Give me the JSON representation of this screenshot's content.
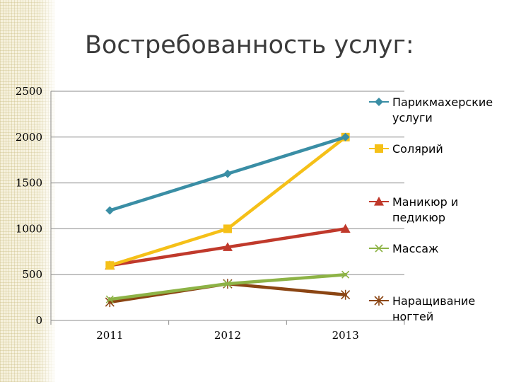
{
  "title": "Востребованность услуг:",
  "chart_data": {
    "type": "line",
    "title": "Востребованность услуг:",
    "x": [
      "2011",
      "2012",
      "2013"
    ],
    "ylim": [
      0,
      2500
    ],
    "yticks": [
      0,
      500,
      1000,
      1500,
      2000,
      2500
    ],
    "grid": true,
    "legend_position": "right",
    "series": [
      {
        "name": "Парикмахерские услуги",
        "values": [
          1200,
          1600,
          2000
        ],
        "color": "#3a8ea5",
        "marker": "diamond"
      },
      {
        "name": "Солярий",
        "values": [
          600,
          1000,
          2000
        ],
        "color": "#f5c018",
        "marker": "square"
      },
      {
        "name": "Маникюр и педикюр",
        "values": [
          600,
          800,
          1000
        ],
        "color": "#c0392b",
        "marker": "triangle"
      },
      {
        "name": "Массаж",
        "values": [
          230,
          400,
          500
        ],
        "color": "#8db346",
        "marker": "x"
      },
      {
        "name": "Наращивание ногтей",
        "values": [
          200,
          400,
          280
        ],
        "color": "#8b4513",
        "marker": "star"
      }
    ]
  }
}
